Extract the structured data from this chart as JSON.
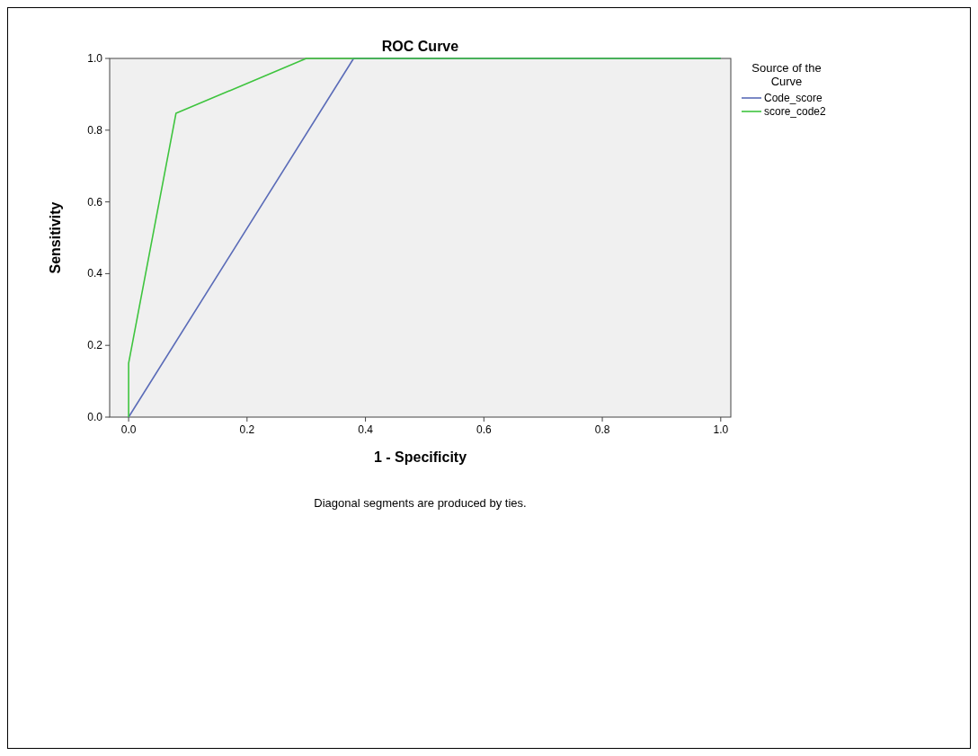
{
  "chart_data": {
    "type": "line",
    "title": "ROC Curve",
    "xlabel": "1 - Specificity",
    "ylabel": "Sensitivity",
    "legend_title": "Source of the Curve",
    "annotations": [
      "Diagonal segments are produced by ties."
    ],
    "series": [
      {
        "name": "Code_score",
        "color": "#5b6cb8",
        "x": [
          0,
          0.38,
          1
        ],
        "values": [
          0,
          1,
          1
        ]
      },
      {
        "name": "score_code2",
        "color": "#3ec43e",
        "x": [
          0,
          0,
          0.08,
          0.3,
          1
        ],
        "values": [
          0,
          0.15,
          0.847,
          1,
          1
        ]
      }
    ],
    "xlim": [
      -0.032,
      1.017
    ],
    "ylim": [
      0,
      1
    ],
    "xticks": [
      {
        "value": 0,
        "label": "0.0"
      },
      {
        "value": 0.2,
        "label": "0.2"
      },
      {
        "value": 0.4,
        "label": "0.4"
      },
      {
        "value": 0.6,
        "label": "0.6"
      },
      {
        "value": 0.8,
        "label": "0.8"
      },
      {
        "value": 1,
        "label": "1.0"
      }
    ],
    "yticks": [
      {
        "value": 0,
        "label": "0.0"
      },
      {
        "value": 0.2,
        "label": "0.2"
      },
      {
        "value": 0.4,
        "label": "0.4"
      },
      {
        "value": 0.6,
        "label": "0.6"
      },
      {
        "value": 0.8,
        "label": "0.8"
      },
      {
        "value": 1,
        "label": "1.0"
      }
    ],
    "grid": false,
    "legend": "top right",
    "marker": "none",
    "line_style": "solid"
  }
}
